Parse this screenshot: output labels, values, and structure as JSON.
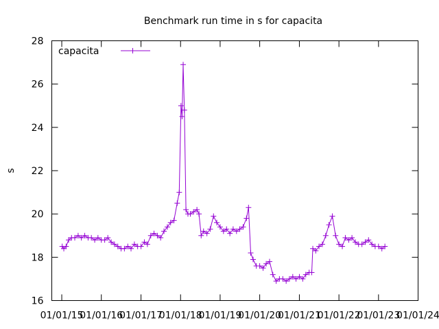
{
  "chart_data": {
    "type": "line",
    "title": "Benchmark run time in s for capacita",
    "xlabel": "",
    "ylabel": "s",
    "x_ticks": [
      "01/01/15",
      "01/01/16",
      "01/01/17",
      "01/01/18",
      "01/01/19",
      "01/01/20",
      "01/01/21",
      "01/01/22",
      "01/01/23",
      "01/01/24"
    ],
    "xlim": [
      "2014-10-01",
      "2024-01-01"
    ],
    "y_ticks": [
      "16",
      "18",
      "20",
      "22",
      "24",
      "26",
      "28"
    ],
    "ylim": [
      16,
      28
    ],
    "grid": false,
    "legend_position": "top-left",
    "series": [
      {
        "name": "capacita",
        "color": "#9400D3",
        "marker": "plus",
        "points": [
          [
            "2015-01-05",
            18.5
          ],
          [
            "2015-01-20",
            18.4
          ],
          [
            "2015-02-10",
            18.5
          ],
          [
            "2015-03-05",
            18.8
          ],
          [
            "2015-04-01",
            18.9
          ],
          [
            "2015-05-01",
            18.9
          ],
          [
            "2015-06-01",
            19.0
          ],
          [
            "2015-07-01",
            18.9
          ],
          [
            "2015-08-01",
            19.0
          ],
          [
            "2015-09-01",
            18.9
          ],
          [
            "2015-10-01",
            18.9
          ],
          [
            "2015-11-01",
            18.8
          ],
          [
            "2015-12-01",
            18.9
          ],
          [
            "2016-01-01",
            18.8
          ],
          [
            "2016-02-01",
            18.8
          ],
          [
            "2016-03-01",
            18.9
          ],
          [
            "2016-04-01",
            18.7
          ],
          [
            "2016-05-01",
            18.6
          ],
          [
            "2016-06-01",
            18.5
          ],
          [
            "2016-07-01",
            18.4
          ],
          [
            "2016-08-01",
            18.4
          ],
          [
            "2016-09-01",
            18.5
          ],
          [
            "2016-10-01",
            18.4
          ],
          [
            "2016-11-01",
            18.6
          ],
          [
            "2016-12-01",
            18.5
          ],
          [
            "2017-01-01",
            18.5
          ],
          [
            "2017-02-01",
            18.7
          ],
          [
            "2017-03-01",
            18.6
          ],
          [
            "2017-04-01",
            19.0
          ],
          [
            "2017-05-01",
            19.1
          ],
          [
            "2017-06-01",
            19.0
          ],
          [
            "2017-07-01",
            18.9
          ],
          [
            "2017-08-01",
            19.2
          ],
          [
            "2017-09-01",
            19.4
          ],
          [
            "2017-10-01",
            19.6
          ],
          [
            "2017-11-01",
            19.7
          ],
          [
            "2017-12-01",
            20.5
          ],
          [
            "2017-12-20",
            21.0
          ],
          [
            "2018-01-05",
            25.0
          ],
          [
            "2018-01-15",
            24.5
          ],
          [
            "2018-01-25",
            26.9
          ],
          [
            "2018-02-05",
            24.8
          ],
          [
            "2018-02-20",
            20.2
          ],
          [
            "2018-03-10",
            20.0
          ],
          [
            "2018-04-01",
            20.0
          ],
          [
            "2018-05-01",
            20.1
          ],
          [
            "2018-06-01",
            20.2
          ],
          [
            "2018-06-20",
            20.0
          ],
          [
            "2018-07-10",
            19.0
          ],
          [
            "2018-08-01",
            19.2
          ],
          [
            "2018-09-01",
            19.1
          ],
          [
            "2018-10-01",
            19.3
          ],
          [
            "2018-11-01",
            19.9
          ],
          [
            "2018-12-01",
            19.6
          ],
          [
            "2019-01-01",
            19.4
          ],
          [
            "2019-02-01",
            19.2
          ],
          [
            "2019-03-01",
            19.3
          ],
          [
            "2019-04-01",
            19.1
          ],
          [
            "2019-05-01",
            19.3
          ],
          [
            "2019-06-01",
            19.2
          ],
          [
            "2019-07-01",
            19.3
          ],
          [
            "2019-08-01",
            19.4
          ],
          [
            "2019-09-01",
            19.8
          ],
          [
            "2019-09-20",
            20.3
          ],
          [
            "2019-10-10",
            18.2
          ],
          [
            "2019-11-01",
            17.9
          ],
          [
            "2019-12-01",
            17.6
          ],
          [
            "2020-01-01",
            17.6
          ],
          [
            "2020-02-01",
            17.5
          ],
          [
            "2020-03-01",
            17.7
          ],
          [
            "2020-04-01",
            17.8
          ],
          [
            "2020-05-01",
            17.2
          ],
          [
            "2020-06-01",
            16.9
          ],
          [
            "2020-07-01",
            17.0
          ],
          [
            "2020-08-01",
            17.0
          ],
          [
            "2020-09-01",
            16.9
          ],
          [
            "2020-10-01",
            17.0
          ],
          [
            "2020-11-01",
            17.1
          ],
          [
            "2020-12-01",
            17.0
          ],
          [
            "2021-01-01",
            17.1
          ],
          [
            "2021-02-01",
            17.0
          ],
          [
            "2021-03-01",
            17.2
          ],
          [
            "2021-04-01",
            17.3
          ],
          [
            "2021-04-25",
            17.3
          ],
          [
            "2021-05-05",
            18.4
          ],
          [
            "2021-06-01",
            18.3
          ],
          [
            "2021-07-01",
            18.5
          ],
          [
            "2021-08-01",
            18.6
          ],
          [
            "2021-09-01",
            19.0
          ],
          [
            "2021-10-01",
            19.5
          ],
          [
            "2021-11-01",
            19.9
          ],
          [
            "2021-12-01",
            19.0
          ],
          [
            "2022-01-01",
            18.6
          ],
          [
            "2022-02-01",
            18.5
          ],
          [
            "2022-03-01",
            18.9
          ],
          [
            "2022-04-01",
            18.8
          ],
          [
            "2022-05-01",
            18.9
          ],
          [
            "2022-06-01",
            18.7
          ],
          [
            "2022-07-01",
            18.6
          ],
          [
            "2022-08-01",
            18.6
          ],
          [
            "2022-09-01",
            18.7
          ],
          [
            "2022-10-01",
            18.8
          ],
          [
            "2022-11-01",
            18.6
          ],
          [
            "2022-12-01",
            18.5
          ],
          [
            "2023-01-01",
            18.5
          ],
          [
            "2023-02-01",
            18.4
          ],
          [
            "2023-03-01",
            18.5
          ]
        ]
      }
    ]
  }
}
